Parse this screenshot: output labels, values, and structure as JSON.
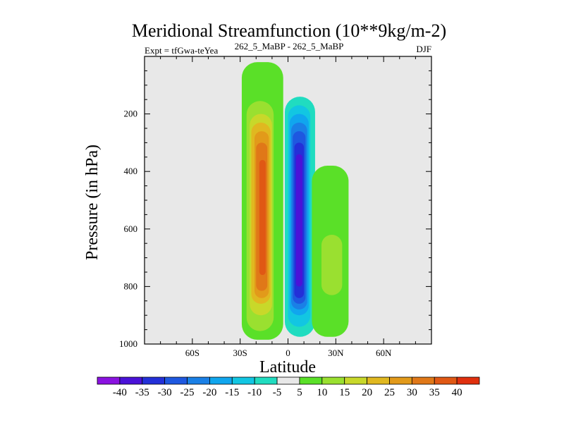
{
  "chart_data": {
    "type": "contour",
    "title": "Meridional Streamfunction (10**9kg/m-2)",
    "subtitle_left": "Expt = tfGwa-teYea",
    "subtitle_center": "262_5_MaBP - 262_5_MaBP",
    "subtitle_right": "DJF",
    "xlabel": "Latitude",
    "ylabel": "Pressure (in hPa)",
    "xlim": [
      -90,
      90
    ],
    "ylim": [
      1000,
      0
    ],
    "x_ticks": [
      {
        "value": -60,
        "label": "60S"
      },
      {
        "value": -30,
        "label": "30S"
      },
      {
        "value": 0,
        "label": "0"
      },
      {
        "value": 30,
        "label": "30N"
      },
      {
        "value": 60,
        "label": "60N"
      }
    ],
    "y_ticks": [
      {
        "value": 200,
        "label": "200"
      },
      {
        "value": 400,
        "label": "400"
      },
      {
        "value": 600,
        "label": "600"
      },
      {
        "value": 800,
        "label": "800"
      },
      {
        "value": 1000,
        "label": "1000"
      }
    ],
    "background_color": "#e8e8e8",
    "colorbar": {
      "labels": [
        "-40",
        "-35",
        "-30",
        "-25",
        "-20",
        "-15",
        "-10",
        "-5",
        "5",
        "10",
        "15",
        "20",
        "25",
        "30",
        "35",
        "40"
      ],
      "colors": [
        "#8a12e0",
        "#4a12d8",
        "#2330d8",
        "#1e58e0",
        "#1a80e6",
        "#10a6ee",
        "#12c6e2",
        "#20dcc0",
        "#e8e8e8",
        "#5ae028",
        "#9ae030",
        "#c8d82a",
        "#e0b820",
        "#e29a1a",
        "#e07818",
        "#e05814",
        "#e0300e"
      ]
    },
    "cells": [
      {
        "name": "southern-hemisphere-positive-cell",
        "sign": "positive",
        "levels": [
          {
            "value": 5,
            "lat_min": -29,
            "lat_max": -3,
            "p_top": 20,
            "p_bottom": 985
          },
          {
            "value": 10,
            "lat_min": -26,
            "lat_max": -9,
            "p_top": 155,
            "p_bottom": 955
          },
          {
            "value": 15,
            "lat_min": -24,
            "lat_max": -10,
            "p_top": 200,
            "p_bottom": 900
          },
          {
            "value": 20,
            "lat_min": -23,
            "lat_max": -11,
            "p_top": 230,
            "p_bottom": 860
          },
          {
            "value": 25,
            "lat_min": -21,
            "lat_max": -12,
            "p_top": 260,
            "p_bottom": 840
          },
          {
            "value": 30,
            "lat_min": -20,
            "lat_max": -13,
            "p_top": 300,
            "p_bottom": 815
          },
          {
            "value": 35,
            "lat_min": -18,
            "lat_max": -14,
            "p_top": 360,
            "p_bottom": 760
          }
        ]
      },
      {
        "name": "equatorial-negative-cell",
        "sign": "negative",
        "levels": [
          {
            "value": -5,
            "lat_min": -2,
            "lat_max": 17,
            "p_top": 140,
            "p_bottom": 975
          },
          {
            "value": -10,
            "lat_min": 0,
            "lat_max": 14,
            "p_top": 170,
            "p_bottom": 940
          },
          {
            "value": -15,
            "lat_min": 1,
            "lat_max": 13,
            "p_top": 200,
            "p_bottom": 900
          },
          {
            "value": -20,
            "lat_min": 2,
            "lat_max": 12,
            "p_top": 230,
            "p_bottom": 880
          },
          {
            "value": -25,
            "lat_min": 3,
            "lat_max": 11,
            "p_top": 260,
            "p_bottom": 860
          },
          {
            "value": -30,
            "lat_min": 4,
            "lat_max": 10,
            "p_top": 300,
            "p_bottom": 840
          },
          {
            "value": -35,
            "lat_min": 5,
            "lat_max": 9,
            "p_top": 340,
            "p_bottom": 800
          }
        ]
      },
      {
        "name": "northern-positive-cell",
        "sign": "positive",
        "levels": [
          {
            "value": 5,
            "lat_min": 15,
            "lat_max": 38,
            "p_top": 380,
            "p_bottom": 975
          },
          {
            "value": 10,
            "lat_min": 21,
            "lat_max": 34,
            "p_top": 620,
            "p_bottom": 830
          }
        ]
      }
    ]
  }
}
